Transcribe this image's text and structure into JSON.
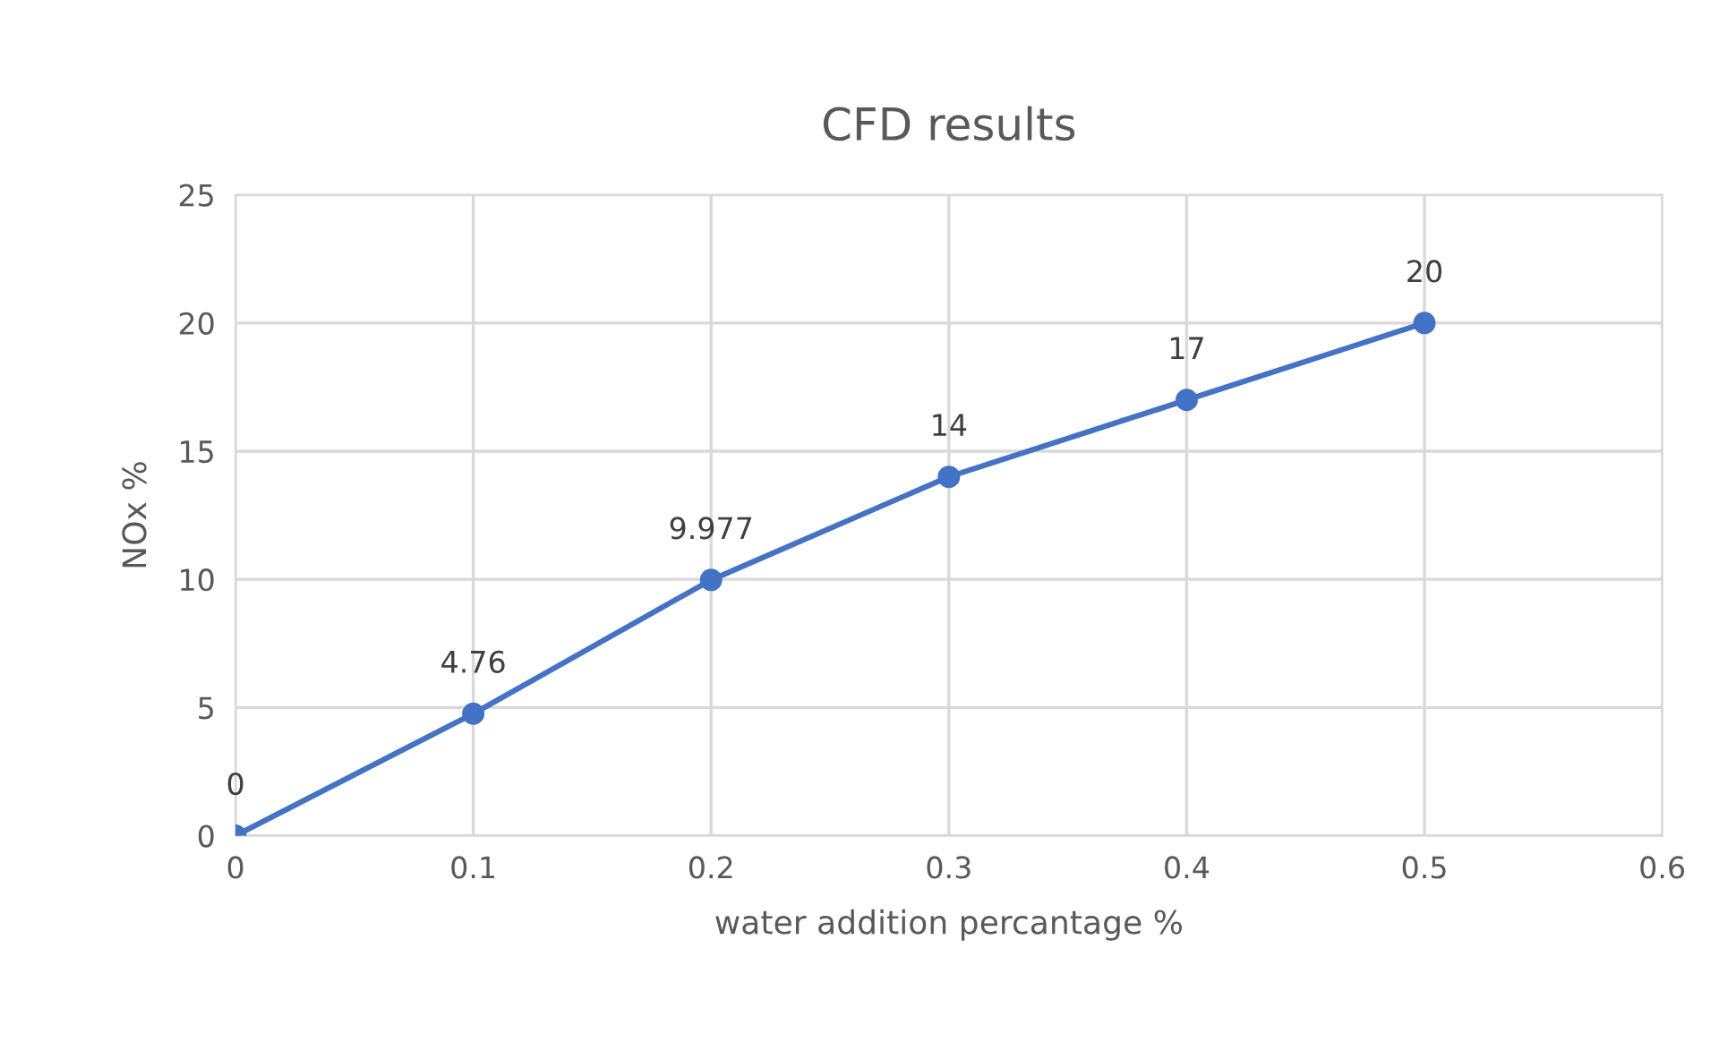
{
  "chart_data": {
    "type": "line",
    "title": "CFD results",
    "xlabel": "water addition percantage %",
    "ylabel": "NOx %",
    "x": [
      0,
      0.1,
      0.2,
      0.3,
      0.4,
      0.5
    ],
    "series": [
      {
        "color": "#4472c4",
        "values": [
          0,
          4.76,
          9.977,
          14,
          17,
          20
        ]
      }
    ],
    "data_labels": true,
    "marker": "circle",
    "line_style": "solid",
    "grid": true,
    "xlim": [
      0,
      0.6
    ],
    "xticks": [
      0,
      0.1,
      0.2,
      0.3,
      0.4,
      0.5,
      0.6
    ],
    "ylim": [
      0,
      25
    ],
    "yticks": [
      0,
      5,
      10,
      15,
      20,
      25
    ]
  }
}
